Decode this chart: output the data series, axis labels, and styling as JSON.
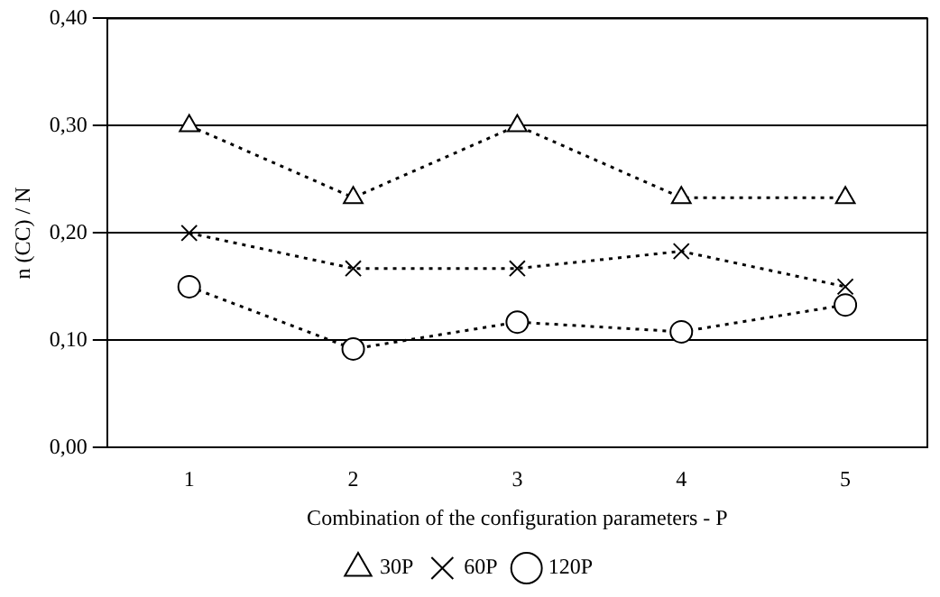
{
  "chart_data": {
    "type": "line",
    "xlabel": "Combination of the configuration parameters - P",
    "ylabel": "n (CC) / N",
    "categories": [
      "1",
      "2",
      "3",
      "4",
      "5"
    ],
    "series": [
      {
        "name": "30P",
        "color": "#000000",
        "marker": "triangle",
        "values": [
          0.3,
          0.233,
          0.3,
          0.233,
          0.233
        ]
      },
      {
        "name": "60P",
        "color": "#000000",
        "marker": "cross",
        "values": [
          0.2,
          0.167,
          0.167,
          0.183,
          0.15
        ]
      },
      {
        "name": "120P",
        "color": "#000000",
        "marker": "circle",
        "values": [
          0.15,
          0.092,
          0.117,
          0.108,
          0.133
        ]
      }
    ],
    "ylim": [
      0,
      0.4
    ],
    "yticks": [
      {
        "value": 0,
        "label": "0,00"
      },
      {
        "value": 0.1,
        "label": "0,10"
      },
      {
        "value": 0.2,
        "label": "0,20"
      },
      {
        "value": 0.3,
        "label": "0,30"
      },
      {
        "value": 0.4,
        "label": "0,40"
      }
    ],
    "grid": "y",
    "legend": "bottom",
    "line_style": "dotted"
  }
}
